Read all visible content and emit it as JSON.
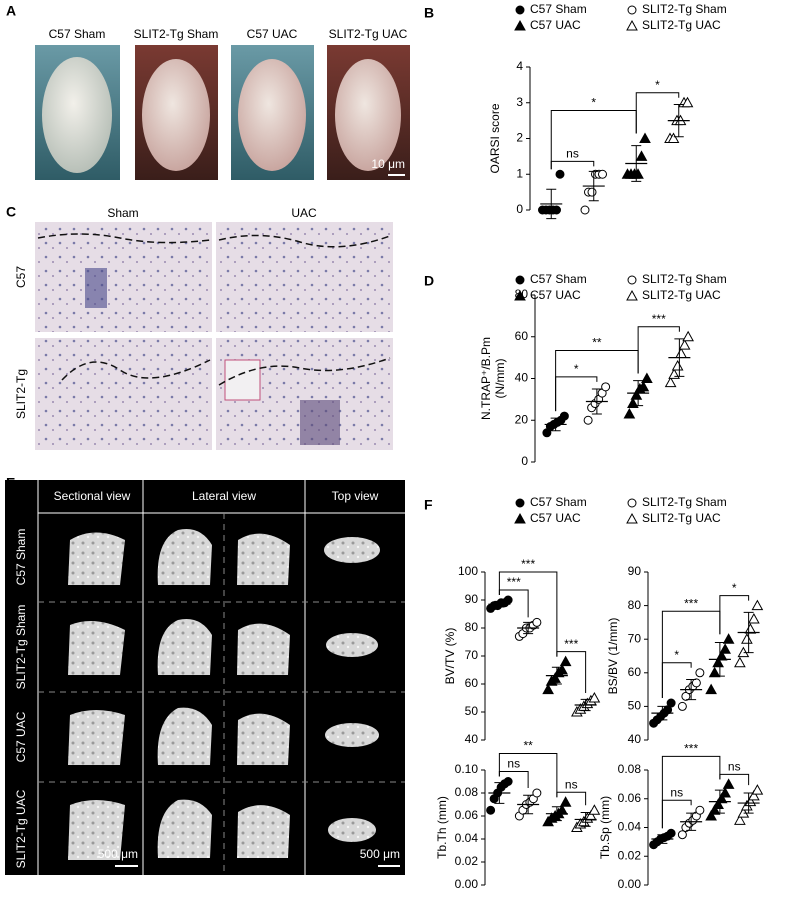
{
  "panel_labels": [
    "A",
    "B",
    "C",
    "D",
    "E",
    "F"
  ],
  "panel_a": {
    "labels": [
      "C57 Sham",
      "SLIT2-Tg Sham",
      "C57 UAC",
      "SLIT2-Tg UAC"
    ],
    "scale_bar": "10 μm"
  },
  "panel_c": {
    "columns": [
      "Sham",
      "UAC"
    ],
    "rows": [
      "C57",
      "SLIT2-Tg"
    ]
  },
  "panel_e": {
    "columns": [
      "Sectional view",
      "Lateral view",
      "Top view"
    ],
    "rows": [
      "C57 Sham",
      "SLIT2-Tg Sham",
      "C57  UAC",
      "SLIT2-Tg UAC"
    ],
    "scale_bars": [
      "500 μm",
      "500 μm"
    ]
  },
  "chart_data": [
    {
      "type": "dotplot",
      "groups": [
        {
          "name": "C57 Sham",
          "marker": "circle",
          "filled": true
        },
        {
          "name": "SLIT2-Tg Sham",
          "marker": "circle",
          "filled": false
        },
        {
          "name": "C57 UAC",
          "marker": "triangle",
          "filled": true
        },
        {
          "name": "SLIT2-Tg UAC",
          "marker": "triangle",
          "filled": false
        }
      ],
      "color": "#000000",
      "panels": [
        {
          "ylabel": [
            "OARSI score"
          ],
          "ylim": [
            0,
            4
          ],
          "yticks": [
            0,
            1,
            2,
            3,
            4
          ],
          "series": [
            {
              "values": [
                0,
                0,
                0,
                0,
                0,
                1
              ],
              "mean": 0.17,
              "sd": 0.41
            },
            {
              "values": [
                0,
                0.5,
                0.5,
                1,
                1,
                1
              ],
              "mean": 0.67,
              "sd": 0.41
            },
            {
              "values": [
                1,
                1,
                1,
                1,
                1.5,
                2
              ],
              "mean": 1.3,
              "sd": 0.5
            },
            {
              "values": [
                2,
                2,
                2.5,
                2.5,
                3,
                3
              ],
              "mean": 2.5,
              "sd": 0.45
            }
          ],
          "annotations": [
            {
              "from": 0,
              "to": 1,
              "text": "ns"
            },
            {
              "from": 0,
              "to": 2,
              "text": "*"
            },
            {
              "from": 2,
              "to": 3,
              "text": "*"
            }
          ]
        }
      ]
    },
    {
      "type": "dotplot",
      "groups": [
        {
          "name": "C57 Sham",
          "marker": "circle",
          "filled": true
        },
        {
          "name": "SLIT2-Tg Sham",
          "marker": "circle",
          "filled": false
        },
        {
          "name": "C57 UAC",
          "marker": "triangle",
          "filled": true
        },
        {
          "name": "SLIT2-Tg UAC",
          "marker": "triangle",
          "filled": false
        }
      ],
      "color": "#000000",
      "panels": [
        {
          "ylabel": [
            "N.TRAP⁺/B.Pm",
            "(N/mm)"
          ],
          "ylim": [
            0,
            80
          ],
          "yticks": [
            0,
            20,
            40,
            60,
            80
          ],
          "series": [
            {
              "values": [
                14,
                17,
                18,
                19,
                20,
                22
              ],
              "mean": 18,
              "sd": 3
            },
            {
              "values": [
                20,
                26,
                28,
                30,
                33,
                36
              ],
              "mean": 29,
              "sd": 6
            },
            {
              "values": [
                23,
                28,
                32,
                35,
                36,
                40
              ],
              "mean": 33,
              "sd": 6
            },
            {
              "values": [
                38,
                42,
                46,
                52,
                56,
                60
              ],
              "mean": 50,
              "sd": 9
            }
          ],
          "annotations": [
            {
              "from": 0,
              "to": 1,
              "text": "*"
            },
            {
              "from": 0,
              "to": 2,
              "text": "**"
            },
            {
              "from": 2,
              "to": 3,
              "text": "***"
            }
          ]
        }
      ]
    },
    {
      "type": "dotplot",
      "groups": [
        {
          "name": "C57 Sham",
          "marker": "circle",
          "filled": true
        },
        {
          "name": "SLIT2-Tg Sham",
          "marker": "circle",
          "filled": false
        },
        {
          "name": "C57 UAC",
          "marker": "triangle",
          "filled": true
        },
        {
          "name": "SLIT2-Tg UAC",
          "marker": "triangle",
          "filled": false
        }
      ],
      "color": "#000000",
      "panels": [
        {
          "ylabel": [
            "BV/TV (%)"
          ],
          "ylim": [
            40,
            100
          ],
          "yticks": [
            40,
            50,
            60,
            70,
            80,
            90,
            100
          ],
          "series": [
            {
              "values": [
                87,
                88,
                88,
                89,
                89,
                90
              ],
              "mean": 88.5,
              "sd": 1
            },
            {
              "values": [
                77,
                78,
                80,
                80,
                81,
                82
              ],
              "mean": 80,
              "sd": 2
            },
            {
              "values": [
                58,
                61,
                62,
                64,
                65,
                68
              ],
              "mean": 63,
              "sd": 3
            },
            {
              "values": [
                50,
                51,
                52,
                53,
                54,
                55
              ],
              "mean": 52.5,
              "sd": 2
            }
          ],
          "annotations": [
            {
              "from": 0,
              "to": 1,
              "text": "***"
            },
            {
              "from": 0,
              "to": 2,
              "text": "***"
            },
            {
              "from": 2,
              "to": 3,
              "text": "***"
            }
          ]
        },
        {
          "ylabel": [
            "BS/BV (1/mm)"
          ],
          "ylim": [
            40,
            90
          ],
          "yticks": [
            40,
            50,
            60,
            70,
            80,
            90
          ],
          "series": [
            {
              "values": [
                45,
                46,
                47,
                48,
                49,
                51
              ],
              "mean": 48,
              "sd": 2
            },
            {
              "values": [
                50,
                53,
                55,
                56,
                57,
                60
              ],
              "mean": 55,
              "sd": 3
            },
            {
              "values": [
                55,
                60,
                63,
                65,
                67,
                70
              ],
              "mean": 64,
              "sd": 5
            },
            {
              "values": [
                63,
                66,
                70,
                73,
                76,
                80
              ],
              "mean": 72,
              "sd": 6
            }
          ],
          "annotations": [
            {
              "from": 0,
              "to": 1,
              "text": "*"
            },
            {
              "from": 0,
              "to": 2,
              "text": "***"
            },
            {
              "from": 2,
              "to": 3,
              "text": "*"
            }
          ]
        },
        {
          "ylabel": [
            "Tb.Th (mm)"
          ],
          "ylim": [
            0,
            0.1
          ],
          "yticks": [
            {
              "value": 0,
              "label": "0.00"
            },
            {
              "value": 0.02,
              "label": "0.02"
            },
            {
              "value": 0.04,
              "label": "0.04"
            },
            {
              "value": 0.06,
              "label": "0.06"
            },
            {
              "value": 0.08,
              "label": "0.08"
            },
            {
              "value": 0.1,
              "label": "0.10"
            }
          ],
          "series": [
            {
              "values": [
                0.065,
                0.075,
                0.08,
                0.085,
                0.088,
                0.09
              ],
              "mean": 0.08,
              "sd": 0.009
            },
            {
              "values": [
                0.06,
                0.065,
                0.07,
                0.072,
                0.075,
                0.08
              ],
              "mean": 0.07,
              "sd": 0.008
            },
            {
              "values": [
                0.055,
                0.058,
                0.06,
                0.062,
                0.065,
                0.072
              ],
              "mean": 0.062,
              "sd": 0.006
            },
            {
              "values": [
                0.05,
                0.053,
                0.055,
                0.058,
                0.06,
                0.065
              ],
              "mean": 0.057,
              "sd": 0.006
            }
          ],
          "annotations": [
            {
              "from": 0,
              "to": 1,
              "text": "ns"
            },
            {
              "from": 0,
              "to": 2,
              "text": "**"
            },
            {
              "from": 2,
              "to": 3,
              "text": "ns"
            }
          ]
        },
        {
          "ylabel": [
            "Tb.Sp (mm)"
          ],
          "ylim": [
            0,
            0.08
          ],
          "yticks": [
            {
              "value": 0,
              "label": "0.00"
            },
            {
              "value": 0.02,
              "label": "0.02"
            },
            {
              "value": 0.04,
              "label": "0.04"
            },
            {
              "value": 0.06,
              "label": "0.06"
            },
            {
              "value": 0.08,
              "label": "0.08"
            }
          ],
          "series": [
            {
              "values": [
                0.028,
                0.03,
                0.032,
                0.033,
                0.034,
                0.036
              ],
              "mean": 0.032,
              "sd": 0.003
            },
            {
              "values": [
                0.035,
                0.04,
                0.043,
                0.045,
                0.048,
                0.052
              ],
              "mean": 0.044,
              "sd": 0.006
            },
            {
              "values": [
                0.048,
                0.052,
                0.056,
                0.06,
                0.064,
                0.07
              ],
              "mean": 0.058,
              "sd": 0.008
            },
            {
              "values": [
                0.045,
                0.05,
                0.055,
                0.058,
                0.062,
                0.066
              ],
              "mean": 0.057,
              "sd": 0.007
            }
          ],
          "annotations": [
            {
              "from": 0,
              "to": 1,
              "text": "ns"
            },
            {
              "from": 0,
              "to": 2,
              "text": "***"
            },
            {
              "from": 2,
              "to": 3,
              "text": "ns"
            }
          ]
        }
      ]
    }
  ]
}
